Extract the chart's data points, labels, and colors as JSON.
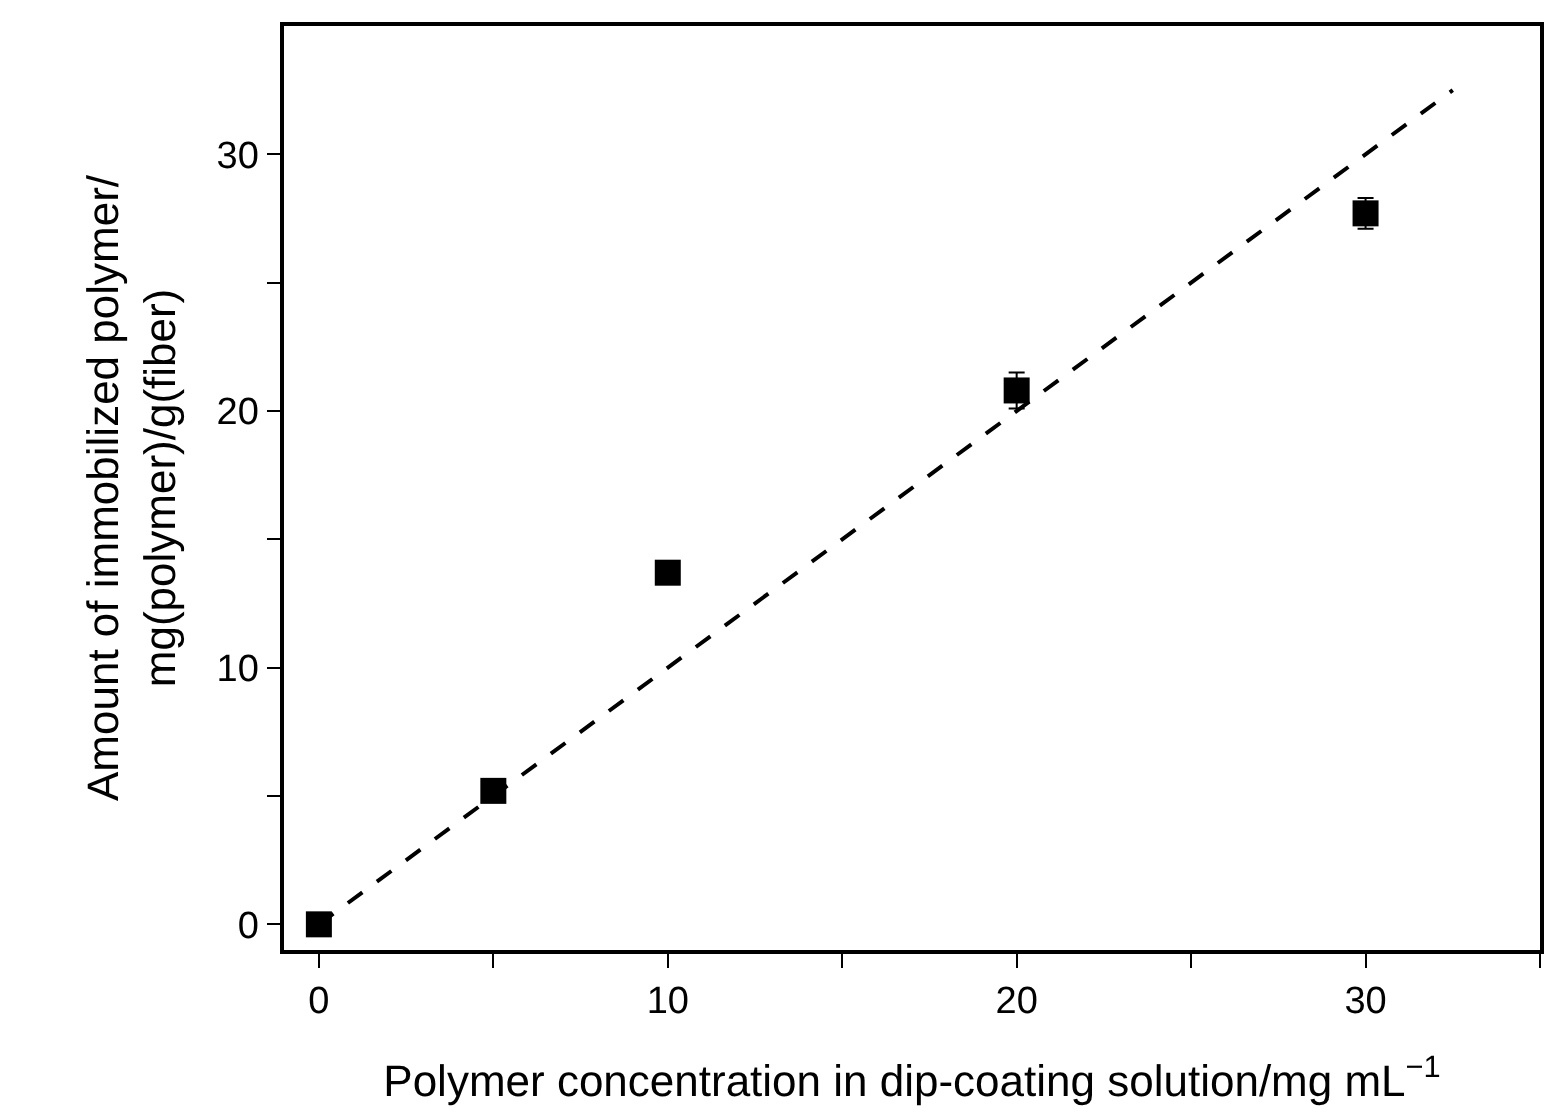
{
  "chart_data": {
    "type": "scatter",
    "xlabel": "Polymer concentration in dip-coating solution/mg mL$^{−1}$",
    "ylabel": "Amount of immobilized polymer/\nmg(polymer)/g(fiber)",
    "x": [
      0,
      5,
      10,
      20,
      30
    ],
    "series": [
      {
        "color": "#000000",
        "values": [
          0,
          5.2,
          13.7,
          20.8,
          27.7
        ],
        "errors": [
          null,
          null,
          null,
          0.7,
          0.6
        ],
        "marker": "square"
      },
      {
        "type": "line",
        "color": "#000000",
        "x": [
          0,
          32.5
        ],
        "values": [
          0,
          32.5
        ],
        "line_style": "dashed",
        "marker": "none"
      }
    ],
    "xlim": [
      -1,
      35
    ],
    "ylim": [
      -1,
      35
    ],
    "xticks": [
      0,
      {
        "value": 5,
        "label": null
      },
      10,
      {
        "value": 15,
        "label": null
      },
      20,
      {
        "value": 25,
        "label": null
      },
      30,
      {
        "value": 35,
        "label": null
      }
    ],
    "yticks": [
      0,
      {
        "value": 5,
        "label": null
      },
      10,
      {
        "value": 15,
        "label": null
      },
      20,
      {
        "value": 25,
        "label": null
      },
      30
    ]
  }
}
